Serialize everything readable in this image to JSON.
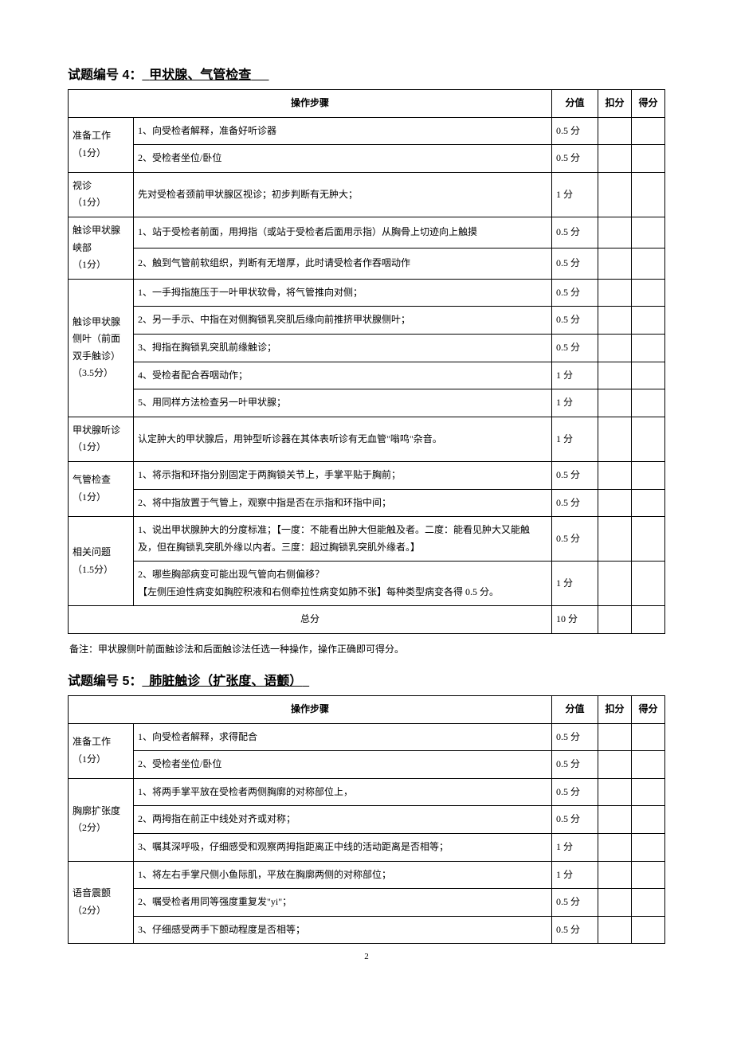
{
  "page_number": "2",
  "question4": {
    "title_prefix": "试题编号 4：",
    "title_main": "甲状腺、气管检查",
    "headers": {
      "steps": "操作步骤",
      "score": "分值",
      "deduct": "扣分",
      "get": "得分"
    },
    "sections": [
      {
        "label": "准备工作\n（1分）",
        "rows": [
          {
            "step": "1、向受检者解释，准备好听诊器",
            "score": "0.5 分"
          },
          {
            "step": "2、受检者坐位/卧位",
            "score": "0.5 分"
          }
        ]
      },
      {
        "label": "视诊\n（1分）",
        "rows": [
          {
            "step": "先对受检者颈前甲状腺区视诊；初步判断有无肿大；",
            "score": "1 分"
          }
        ]
      },
      {
        "label": "触诊甲状腺峡部\n（1分）",
        "rows": [
          {
            "step": "1、站于受检者前面，用拇指（或站于受检者后面用示指）从胸骨上切迹向上触摸",
            "score": "0.5 分"
          },
          {
            "step": "2、触到气管前软组织，判断有无增厚，此时请受检者作吞咽动作",
            "score": "0.5 分"
          }
        ]
      },
      {
        "label": "触诊甲状腺侧叶（前面双手触诊）\n（3.5分）",
        "rows": [
          {
            "step": "1、一手拇指施压于一叶甲状软骨，将气管推向对侧；",
            "score": "0.5 分"
          },
          {
            "step": "2、另一手示、中指在对侧胸锁乳突肌后缘向前推挤甲状腺侧叶；",
            "score": "0.5 分"
          },
          {
            "step": "3、拇指在胸锁乳突肌前缘触诊；",
            "score": "0.5 分"
          },
          {
            "step": "4、受检者配合吞咽动作；",
            "score": "1 分"
          },
          {
            "step": "5、用同样方法检查另一叶甲状腺；",
            "score": "1 分"
          }
        ]
      },
      {
        "label": "甲状腺听诊（1分）",
        "rows": [
          {
            "step": "认定肿大的甲状腺后，用钟型听诊器在其体表听诊有无血管\"嗡鸣\"杂音。",
            "score": "1 分"
          }
        ]
      },
      {
        "label": "气管检查\n（1分）",
        "rows": [
          {
            "step": "1、将示指和环指分别固定于两胸锁关节上，手掌平贴于胸前；",
            "score": "0.5 分"
          },
          {
            "step": "2、将中指放置于气管上，观察中指是否在示指和环指中间；",
            "score": "0.5 分"
          }
        ]
      },
      {
        "label": "相关问题\n（1.5分）",
        "rows": [
          {
            "step": "1、说出甲状腺肿大的分度标准；【一度：不能看出肿大但能触及者。二度：能看见肿大又能触及，但在胸锁乳突肌外缘以内者。三度：超过胸锁乳突肌外缘者。】",
            "score": "0.5 分"
          },
          {
            "step": "2、哪些胸部病变可能出现气管向右侧偏移？\n【左侧压迫性病变如胸腔积液和右侧牵拉性病变如肺不张】每种类型病变各得 0.5 分。",
            "score": "1 分"
          }
        ]
      }
    ],
    "total": {
      "label": "总分",
      "score": "10 分"
    },
    "note": "备注：甲状腺侧叶前面触诊法和后面触诊法任选一种操作，操作正确即可得分。"
  },
  "question5": {
    "title_prefix": "试题编号 5：",
    "title_main": "肺脏触诊（扩张度、语颤）",
    "headers": {
      "steps": "操作步骤",
      "score": "分值",
      "deduct": "扣分",
      "get": "得分"
    },
    "sections": [
      {
        "label": "准备工作\n（1分）",
        "rows": [
          {
            "step": "1、向受检者解释，求得配合",
            "score": "0.5 分"
          },
          {
            "step": "2、受检者坐位/卧位",
            "score": "0.5 分"
          }
        ]
      },
      {
        "label": "胸廓扩张度（2分）",
        "rows": [
          {
            "step": "1、将两手掌平放在受检者两侧胸廓的对称部位上，",
            "score": "0.5 分"
          },
          {
            "step": "2、两拇指在前正中线处对齐或对称；",
            "score": "0.5 分"
          },
          {
            "step": "3、嘱其深呼吸，仔细感受和观察两拇指距离正中线的活动距离是否相等；",
            "score": "1 分"
          }
        ]
      },
      {
        "label": "语音震颤\n（2分）",
        "rows": [
          {
            "step": "1、将左右手掌尺侧小鱼际肌，平放在胸廓两侧的对称部位；",
            "score": "1 分"
          },
          {
            "step": "2、嘱受检者用同等强度重复发\"yi\"；",
            "score": "0.5 分"
          },
          {
            "step": "3、仔细感受两手下颤动程度是否相等；",
            "score": "0.5 分"
          }
        ]
      }
    ]
  }
}
